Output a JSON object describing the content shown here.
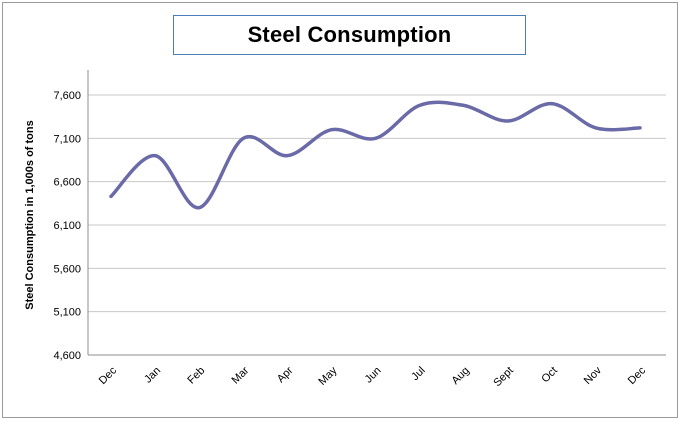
{
  "chart_data": {
    "type": "line",
    "title": "Steel Consumption",
    "xlabel": "",
    "ylabel": "Steel Consumption in 1,000s of tons",
    "categories": [
      "Dec",
      "Jan",
      "Feb",
      "Mar",
      "Apr",
      "May",
      "Jun",
      "Jul",
      "Aug",
      "Sept",
      "Oct",
      "Nov",
      "Dec"
    ],
    "series": [
      {
        "values": [
          6430,
          6900,
          6300,
          7100,
          6900,
          7200,
          7100,
          7480,
          7480,
          7300,
          7500,
          7220,
          7220
        ]
      }
    ],
    "ylim": [
      4600,
      7900
    ],
    "yticks": [
      4600,
      5100,
      5600,
      6100,
      6600,
      7100,
      7600
    ],
    "ytick_labels": [
      "4,600",
      "5,100",
      "5,600",
      "6,100",
      "6,600",
      "7,100",
      "7,600"
    ],
    "grid": true,
    "smooth": true,
    "line_color": "#6a6aa8",
    "grid_color": "#c8c8c8"
  }
}
